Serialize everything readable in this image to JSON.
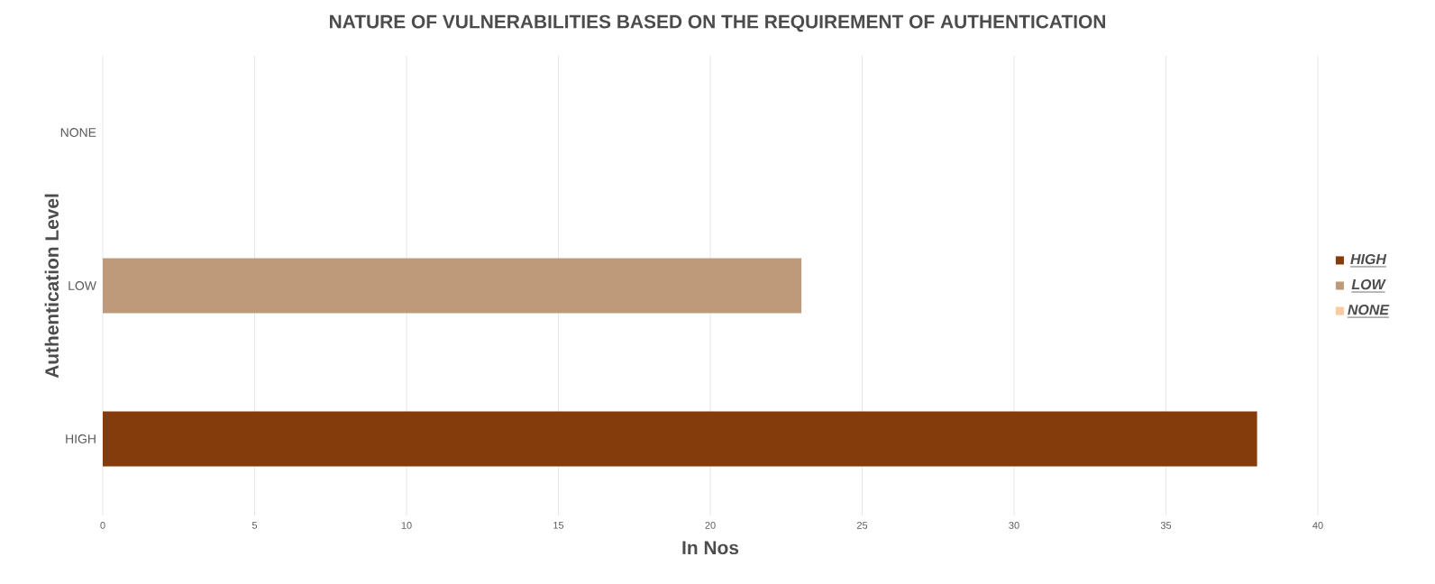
{
  "chart_data": {
    "type": "bar",
    "orientation": "horizontal",
    "title": "NATURE OF VULNERABILITIES BASED ON THE REQUIREMENT OF AUTHENTICATION",
    "xlabel": "In Nos",
    "ylabel": "Authentication Level",
    "categories": [
      "NONE",
      "LOW",
      "HIGH"
    ],
    "series": [
      {
        "name": "HIGH",
        "color": "#843c0c",
        "values": [
          null,
          null,
          38
        ]
      },
      {
        "name": "LOW",
        "color": "#bf9a7a",
        "values": [
          null,
          23,
          null
        ]
      },
      {
        "name": "NONE",
        "color": "#f8cba0",
        "values": [
          0,
          null,
          null
        ]
      }
    ],
    "xlim": [
      0,
      40
    ],
    "xticks": [
      0,
      5,
      10,
      15,
      20,
      25,
      30,
      35,
      40
    ],
    "grid": "x",
    "legend": "right"
  }
}
